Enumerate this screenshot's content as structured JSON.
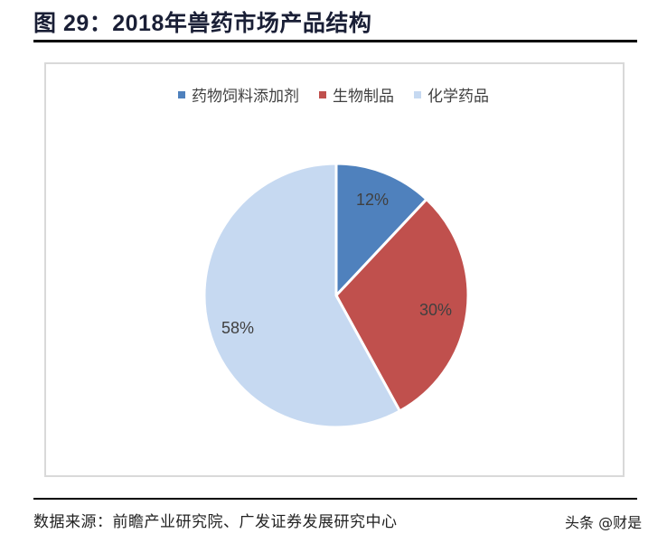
{
  "title": "图 29：2018年兽药市场产品结构",
  "legend": [
    {
      "label": "药物饲料添加剂",
      "color": "#4f81bd"
    },
    {
      "label": "生物制品",
      "color": "#c0504d"
    },
    {
      "label": "化学药品",
      "color": "#c6d9f1"
    }
  ],
  "labels": {
    "s0": "12%",
    "s1": "30%",
    "s2": "58%"
  },
  "source": "数据来源：前瞻产业研究院、广发证券发展研究中心",
  "watermark": "头条 @财是",
  "chart_data": {
    "type": "pie",
    "title": "2018年兽药市场产品结构",
    "categories": [
      "药物饲料添加剂",
      "生物制品",
      "化学药品"
    ],
    "values": [
      12,
      30,
      58
    ],
    "unit": "%",
    "colors": [
      "#4f81bd",
      "#c0504d",
      "#c6d9f1"
    ],
    "start_angle": "12 o'clock, clockwise",
    "legend_position": "top",
    "data_labels": [
      "12%",
      "30%",
      "58%"
    ]
  }
}
